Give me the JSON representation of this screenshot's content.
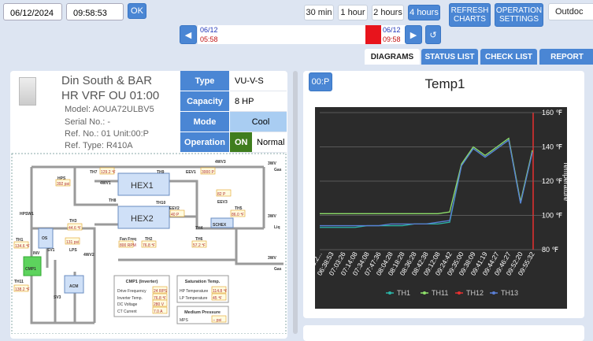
{
  "toolbar": {
    "date": "06/12/2024",
    "time": "09:58:53",
    "ok": "OK",
    "ranges": [
      "30 min",
      "1 hour",
      "2 hours",
      "4 hours"
    ],
    "refresh": "REFRESH CHARTS",
    "operation": "OPERATION SETTINGS",
    "select": "Outdoc"
  },
  "timeline": {
    "start_date": "06/12",
    "start_time": "05:58",
    "end_date": "06/12",
    "end_time": "09:58"
  },
  "tabs": [
    "DIAGRAMS",
    "STATUS LIST",
    "CHECK LIST",
    "REPORT"
  ],
  "unit": {
    "name_line1": "Din South & BAR",
    "name_line2": "HR VRF OU 01:00",
    "model": "Model: AOUA72ULBV5",
    "serial": "Serial No.: -",
    "ref_no": "Ref. No.: 01 Unit:00:P",
    "ref_type": "Ref. Type: R410A"
  },
  "status_table": [
    [
      "Type",
      "VU-V-S"
    ],
    [
      "Capacity",
      "8 HP"
    ],
    [
      "Mode",
      "Cool"
    ],
    [
      "Operation",
      "ON",
      "Normal"
    ]
  ],
  "diagram": {
    "labels": [
      "3WV",
      "Gas",
      "3WV",
      "Liq",
      "3WV",
      "Gas",
      "TH7",
      "129.2 ℉",
      "TH9",
      "EEV1",
      "3000 P",
      "4WV3",
      "4WV1",
      "HEX1",
      "TH8",
      "TH10",
      "EEV2",
      "40 P",
      "EEV3",
      "82 P",
      "TH5",
      "86.0 ℉",
      "HPS",
      "392 psi",
      "HPSW1",
      "HEX2",
      "TH3",
      "44.6 ℉",
      "SCHEX",
      "TH4",
      "OS",
      "131 psi",
      "TH2",
      "76.8 ℉",
      "TH6",
      "57.2 ℉",
      "Fan Freq",
      "800 RPM",
      "TH1",
      "134.6 ℉",
      "LPS",
      "SV1",
      "INV",
      "4WV2",
      "CMP1",
      "TH11",
      "138.2 ℉",
      "ACM",
      "SV3",
      "CMP1 (Inverter)",
      "Saturation Temp.",
      "Drive Frequency",
      "24 RPS",
      "Inverter Temp.",
      "76.8 ℉",
      "DC Voltage",
      "280 V",
      "CT Current",
      "7.0 A",
      "HP Temperature",
      "114.8 ℉",
      "LP Temperature",
      "45 ℉",
      "Medium Pressure",
      "MPS",
      "-- psi"
    ]
  },
  "chart_badge": "00:P",
  "chart_data": {
    "type": "line",
    "title": "Temp1",
    "y_label": "Temperature",
    "x": [
      "06:2...",
      "06:38:53",
      "07:03:26",
      "07:14:08",
      "07:34:08",
      "07:47:36",
      "08:04:28",
      "08:18:28",
      "08:36:28",
      "08:42:38",
      "09:12:08",
      "09:24:42",
      "09:35:00",
      "09:38:09",
      "09:41:19",
      "09:44:27",
      "09:46:27",
      "09:52:20",
      "09:55:32"
    ],
    "series": [
      {
        "name": "TH1",
        "color": "#2bb5a7",
        "values": [
          93,
          93,
          93,
          93,
          94,
          94,
          94,
          94,
          95,
          95,
          95,
          96,
          129,
          139,
          134,
          139,
          144,
          107,
          137
        ]
      },
      {
        "name": "TH11",
        "color": "#8ee06a",
        "values": [
          101,
          101,
          101,
          101,
          101,
          101,
          101,
          101,
          101,
          101,
          101,
          102,
          130,
          140,
          135,
          140,
          145,
          108,
          138
        ]
      },
      {
        "name": "TH12",
        "color": "#e83030",
        "values": [
          null,
          null,
          null,
          null,
          null,
          null,
          null,
          null,
          null,
          null,
          null,
          null,
          null,
          null,
          null,
          null,
          null,
          null,
          null
        ]
      },
      {
        "name": "TH13",
        "color": "#5a7fd6",
        "values": [
          94,
          94,
          94,
          94,
          94,
          94,
          95,
          95,
          95,
          95,
          96,
          97,
          129,
          139,
          134,
          139,
          144,
          107,
          137
        ]
      }
    ],
    "ylim": [
      80,
      160
    ],
    "yticks": [
      {
        "value": 80,
        "label": "80 ℉"
      },
      {
        "value": 100,
        "label": "100 ℉"
      },
      {
        "value": 120,
        "label": "120 ℉"
      },
      {
        "value": 140,
        "label": "140 ℉"
      },
      {
        "value": 160,
        "label": "160 ℉"
      }
    ],
    "grid": true
  }
}
